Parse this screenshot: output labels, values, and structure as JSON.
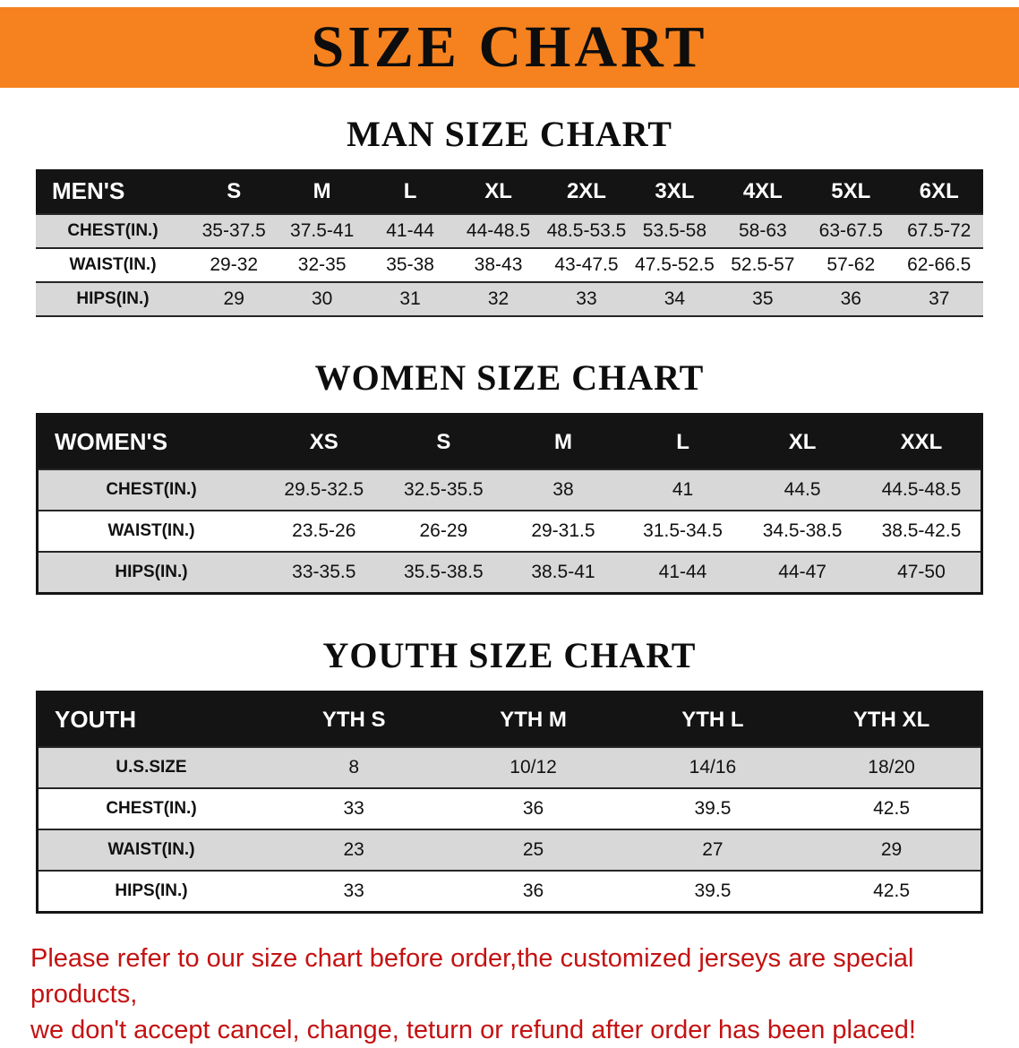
{
  "banner": {
    "title": "SIZE CHART"
  },
  "colors": {
    "banner_bg": "#f5821f",
    "table_header_bg": "#141414",
    "table_header_text": "#ffffff",
    "row_alt_bg": "#d8d8d8",
    "disclaimer_text": "#c41212"
  },
  "chart_data": [
    {
      "type": "table",
      "title": "MAN SIZE CHART",
      "header": [
        "MEN'S",
        "S",
        "M",
        "L",
        "XL",
        "2XL",
        "3XL",
        "4XL",
        "5XL",
        "6XL"
      ],
      "rows": [
        [
          "CHEST(IN.)",
          "35-37.5",
          "37.5-41",
          "41-44",
          "44-48.5",
          "48.5-53.5",
          "53.5-58",
          "58-63",
          "63-67.5",
          "67.5-72"
        ],
        [
          "WAIST(IN.)",
          "29-32",
          "32-35",
          "35-38",
          "38-43",
          "43-47.5",
          "47.5-52.5",
          "52.5-57",
          "57-62",
          "62-66.5"
        ],
        [
          "HIPS(IN.)",
          "29",
          "30",
          "31",
          "32",
          "33",
          "34",
          "35",
          "36",
          "37"
        ]
      ]
    },
    {
      "type": "table",
      "title": "WOMEN SIZE CHART",
      "header": [
        "WOMEN'S",
        "XS",
        "S",
        "M",
        "L",
        "XL",
        "XXL"
      ],
      "rows": [
        [
          "CHEST(IN.)",
          "29.5-32.5",
          "32.5-35.5",
          "38",
          "41",
          "44.5",
          "44.5-48.5"
        ],
        [
          "WAIST(IN.)",
          "23.5-26",
          "26-29",
          "29-31.5",
          "31.5-34.5",
          "34.5-38.5",
          "38.5-42.5"
        ],
        [
          "HIPS(IN.)",
          "33-35.5",
          "35.5-38.5",
          "38.5-41",
          "41-44",
          "44-47",
          "47-50"
        ]
      ]
    },
    {
      "type": "table",
      "title": "YOUTH SIZE CHART",
      "header": [
        "YOUTH",
        "YTH S",
        "YTH M",
        "YTH L",
        "YTH XL"
      ],
      "rows": [
        [
          "U.S.SIZE",
          "8",
          "10/12",
          "14/16",
          "18/20"
        ],
        [
          "CHEST(IN.)",
          "33",
          "36",
          "39.5",
          "42.5"
        ],
        [
          "WAIST(IN.)",
          "23",
          "25",
          "27",
          "29"
        ],
        [
          "HIPS(IN.)",
          "33",
          "36",
          "39.5",
          "42.5"
        ]
      ]
    }
  ],
  "disclaimer": {
    "line1": "Please refer to our size chart before order,the customized jerseys are special products,",
    "line2": "we don't accept cancel, change, teturn or refund after order has been placed!"
  }
}
